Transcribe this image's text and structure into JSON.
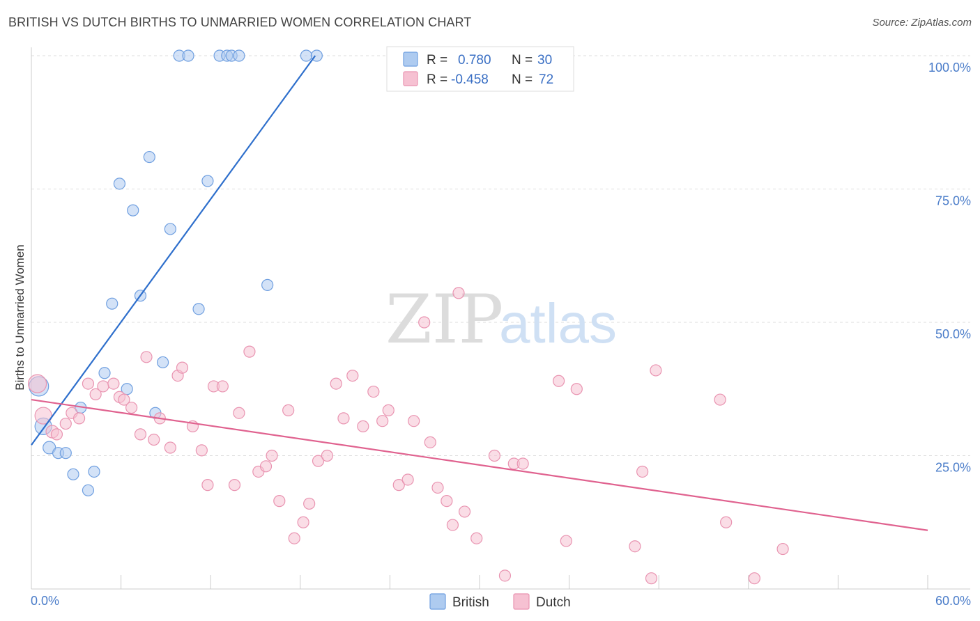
{
  "header": {
    "title": "BRITISH VS DUTCH BIRTHS TO UNMARRIED WOMEN CORRELATION CHART",
    "source": "Source: ZipAtlas.com"
  },
  "watermark": {
    "zip": "ZIP",
    "atlas": "atlas"
  },
  "chart_data": {
    "type": "scatter",
    "title": "BRITISH VS DUTCH BIRTHS TO UNMARRIED WOMEN CORRELATION CHART",
    "ylabel": "Births to Unmarried Women",
    "xlabel": "",
    "xlim": [
      0,
      60
    ],
    "ylim": [
      0,
      100
    ],
    "x_tick_labels": {
      "min": "0.0%",
      "max": "60.0%"
    },
    "y_ticks": [
      {
        "value": 25,
        "label": "25.0%"
      },
      {
        "value": 50,
        "label": "50.0%"
      },
      {
        "value": 75,
        "label": "75.0%"
      },
      {
        "value": 100,
        "label": "100.0%"
      }
    ],
    "grid": "horizontal-dashed",
    "legend_position": "top-center",
    "stats": [
      {
        "r_label": "R =",
        "r_value": "0.780",
        "n_label": "N =",
        "n_value": "30"
      },
      {
        "r_label": "R =",
        "r_value": "-0.458",
        "n_label": "N =",
        "n_value": "72"
      }
    ],
    "series": [
      {
        "name": "British",
        "fill": "#aecbf0",
        "stroke": "#6f9fe0",
        "line_color": "#2e6fcc",
        "trend": {
          "x": [
            0,
            19
          ],
          "y": [
            27,
            100
          ]
        },
        "points": [
          {
            "x": 0.5,
            "y": 38,
            "s": 14
          },
          {
            "x": 0.8,
            "y": 30.5,
            "s": 12
          },
          {
            "x": 1.2,
            "y": 26.5,
            "s": 9
          },
          {
            "x": 1.8,
            "y": 25.5,
            "s": 8
          },
          {
            "x": 2.3,
            "y": 25.5,
            "s": 8
          },
          {
            "x": 2.8,
            "y": 21.5,
            "s": 8
          },
          {
            "x": 3.3,
            "y": 34,
            "s": 8
          },
          {
            "x": 3.8,
            "y": 18.5,
            "s": 8
          },
          {
            "x": 4.2,
            "y": 22,
            "s": 8
          },
          {
            "x": 4.9,
            "y": 40.5,
            "s": 8
          },
          {
            "x": 5.4,
            "y": 53.5,
            "s": 8
          },
          {
            "x": 5.9,
            "y": 76,
            "s": 8
          },
          {
            "x": 6.4,
            "y": 37.5,
            "s": 8
          },
          {
            "x": 6.8,
            "y": 71,
            "s": 8
          },
          {
            "x": 7.3,
            "y": 55,
            "s": 8
          },
          {
            "x": 7.9,
            "y": 81,
            "s": 8
          },
          {
            "x": 8.3,
            "y": 33,
            "s": 8
          },
          {
            "x": 8.8,
            "y": 42.5,
            "s": 8
          },
          {
            "x": 9.3,
            "y": 67.5,
            "s": 8
          },
          {
            "x": 9.9,
            "y": 100,
            "s": 8
          },
          {
            "x": 10.5,
            "y": 100,
            "s": 8
          },
          {
            "x": 11.2,
            "y": 52.5,
            "s": 8
          },
          {
            "x": 11.8,
            "y": 76.5,
            "s": 8
          },
          {
            "x": 12.6,
            "y": 100,
            "s": 8
          },
          {
            "x": 13.1,
            "y": 100,
            "s": 8
          },
          {
            "x": 13.4,
            "y": 100,
            "s": 8
          },
          {
            "x": 13.9,
            "y": 100,
            "s": 8
          },
          {
            "x": 15.8,
            "y": 57,
            "s": 8
          },
          {
            "x": 18.4,
            "y": 100,
            "s": 8
          },
          {
            "x": 19.1,
            "y": 100,
            "s": 8
          }
        ]
      },
      {
        "name": "Dutch",
        "fill": "#f6c1d2",
        "stroke": "#e994b1",
        "line_color": "#e0628f",
        "trend": {
          "x": [
            0,
            60
          ],
          "y": [
            35.5,
            11
          ]
        },
        "points": [
          {
            "x": 0.4,
            "y": 38.5,
            "s": 13
          },
          {
            "x": 0.8,
            "y": 32.5,
            "s": 12
          },
          {
            "x": 1.4,
            "y": 29.5,
            "s": 9
          },
          {
            "x": 1.7,
            "y": 29,
            "s": 8
          },
          {
            "x": 2.3,
            "y": 31,
            "s": 8
          },
          {
            "x": 2.7,
            "y": 33,
            "s": 8
          },
          {
            "x": 3.2,
            "y": 32,
            "s": 8
          },
          {
            "x": 3.8,
            "y": 38.5,
            "s": 8
          },
          {
            "x": 4.3,
            "y": 36.5,
            "s": 8
          },
          {
            "x": 4.8,
            "y": 38,
            "s": 8
          },
          {
            "x": 5.5,
            "y": 38.5,
            "s": 8
          },
          {
            "x": 5.9,
            "y": 36,
            "s": 8
          },
          {
            "x": 6.2,
            "y": 35.5,
            "s": 8
          },
          {
            "x": 6.7,
            "y": 34,
            "s": 8
          },
          {
            "x": 7.3,
            "y": 29,
            "s": 8
          },
          {
            "x": 7.7,
            "y": 43.5,
            "s": 8
          },
          {
            "x": 8.2,
            "y": 28,
            "s": 8
          },
          {
            "x": 8.6,
            "y": 32,
            "s": 8
          },
          {
            "x": 9.3,
            "y": 26.5,
            "s": 8
          },
          {
            "x": 9.8,
            "y": 40,
            "s": 8
          },
          {
            "x": 10.1,
            "y": 41.5,
            "s": 8
          },
          {
            "x": 10.8,
            "y": 30.5,
            "s": 8
          },
          {
            "x": 11.4,
            "y": 26,
            "s": 8
          },
          {
            "x": 11.8,
            "y": 19.5,
            "s": 8
          },
          {
            "x": 12.2,
            "y": 38,
            "s": 8
          },
          {
            "x": 12.8,
            "y": 38,
            "s": 8
          },
          {
            "x": 13.6,
            "y": 19.5,
            "s": 8
          },
          {
            "x": 13.9,
            "y": 33,
            "s": 8
          },
          {
            "x": 14.6,
            "y": 44.5,
            "s": 8
          },
          {
            "x": 15.2,
            "y": 22,
            "s": 8
          },
          {
            "x": 15.7,
            "y": 23,
            "s": 8
          },
          {
            "x": 16.1,
            "y": 25,
            "s": 8
          },
          {
            "x": 16.6,
            "y": 16.5,
            "s": 8
          },
          {
            "x": 17.2,
            "y": 33.5,
            "s": 8
          },
          {
            "x": 17.6,
            "y": 9.5,
            "s": 8
          },
          {
            "x": 18.2,
            "y": 12.5,
            "s": 8
          },
          {
            "x": 18.6,
            "y": 16,
            "s": 8
          },
          {
            "x": 19.2,
            "y": 24,
            "s": 8
          },
          {
            "x": 19.8,
            "y": 25,
            "s": 8
          },
          {
            "x": 20.4,
            "y": 38.5,
            "s": 8
          },
          {
            "x": 20.9,
            "y": 32,
            "s": 8
          },
          {
            "x": 21.5,
            "y": 40,
            "s": 8
          },
          {
            "x": 22.2,
            "y": 30.5,
            "s": 8
          },
          {
            "x": 22.9,
            "y": 37,
            "s": 8
          },
          {
            "x": 23.5,
            "y": 31.5,
            "s": 8
          },
          {
            "x": 23.9,
            "y": 33.5,
            "s": 8
          },
          {
            "x": 24.6,
            "y": 19.5,
            "s": 8
          },
          {
            "x": 25.2,
            "y": 20.5,
            "s": 8
          },
          {
            "x": 25.6,
            "y": 31.5,
            "s": 8
          },
          {
            "x": 26.3,
            "y": 50,
            "s": 8
          },
          {
            "x": 26.7,
            "y": 27.5,
            "s": 8
          },
          {
            "x": 27.2,
            "y": 19,
            "s": 8
          },
          {
            "x": 27.8,
            "y": 16.5,
            "s": 8
          },
          {
            "x": 28.2,
            "y": 12,
            "s": 8
          },
          {
            "x": 28.6,
            "y": 55.5,
            "s": 8
          },
          {
            "x": 29.0,
            "y": 14.5,
            "s": 8
          },
          {
            "x": 29.8,
            "y": 9.5,
            "s": 8
          },
          {
            "x": 31.0,
            "y": 25,
            "s": 8
          },
          {
            "x": 31.7,
            "y": 2.5,
            "s": 8
          },
          {
            "x": 32.3,
            "y": 23.5,
            "s": 8
          },
          {
            "x": 32.9,
            "y": 23.5,
            "s": 8
          },
          {
            "x": 35.3,
            "y": 39,
            "s": 8
          },
          {
            "x": 35.8,
            "y": 9,
            "s": 8
          },
          {
            "x": 36.5,
            "y": 37.5,
            "s": 8
          },
          {
            "x": 40.4,
            "y": 8,
            "s": 8
          },
          {
            "x": 40.9,
            "y": 22,
            "s": 8
          },
          {
            "x": 41.5,
            "y": 2,
            "s": 8
          },
          {
            "x": 41.8,
            "y": 41,
            "s": 8
          },
          {
            "x": 46.1,
            "y": 35.5,
            "s": 8
          },
          {
            "x": 46.5,
            "y": 12.5,
            "s": 8
          },
          {
            "x": 48.4,
            "y": 2,
            "s": 8
          },
          {
            "x": 50.3,
            "y": 7.5,
            "s": 8
          }
        ]
      }
    ]
  }
}
